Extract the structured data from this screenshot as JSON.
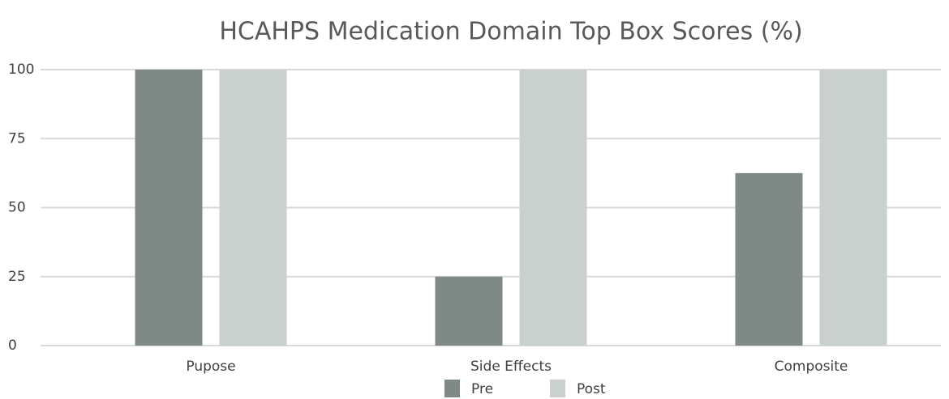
{
  "chart_data": {
    "type": "bar",
    "title": "HCAHPS Medication Domain Top Box Scores (%)",
    "categories": [
      "Pupose",
      "Side Effects",
      "Composite"
    ],
    "series": [
      {
        "name": "Pre",
        "color": "#7f8a86",
        "values": [
          100,
          25,
          62.5
        ]
      },
      {
        "name": "Post",
        "color": "#c9d0ce",
        "values": [
          100,
          100,
          100
        ]
      }
    ],
    "ylim": [
      0,
      100
    ],
    "yticks": [
      0,
      25,
      50,
      75,
      100
    ],
    "grid": true,
    "legend": "bottom"
  }
}
